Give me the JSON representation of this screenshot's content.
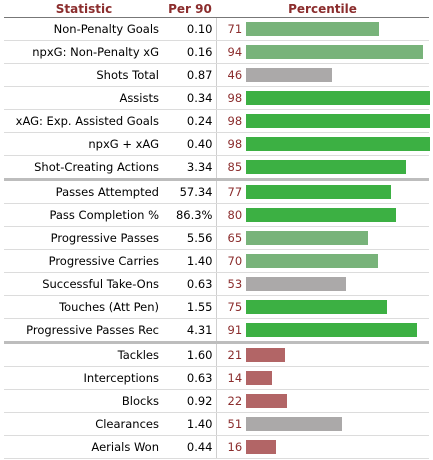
{
  "header": {
    "statistic": "Statistic",
    "per90": "Per 90",
    "percentile": "Percentile"
  },
  "colors": {
    "high": "#3cb043",
    "medium": "#78b37a",
    "neutral": "#aba9a9",
    "low": "#b26566",
    "number": "#8b2d2d"
  },
  "chart_data": {
    "type": "bar",
    "title": "",
    "xlabel": "",
    "ylabel": "",
    "xlim": [
      0,
      100
    ],
    "groups": [
      {
        "rows": [
          {
            "stat": "Non-Penalty Goals",
            "per90": "0.10",
            "percentile": 71,
            "color": "medium"
          },
          {
            "stat": "npxG: Non-Penalty xG",
            "per90": "0.16",
            "percentile": 94,
            "color": "medium"
          },
          {
            "stat": "Shots Total",
            "per90": "0.87",
            "percentile": 46,
            "color": "neutral"
          },
          {
            "stat": "Assists",
            "per90": "0.34",
            "percentile": 98,
            "color": "high"
          },
          {
            "stat": "xAG: Exp. Assisted Goals",
            "per90": "0.24",
            "percentile": 98,
            "color": "high"
          },
          {
            "stat": "npxG + xAG",
            "per90": "0.40",
            "percentile": 98,
            "color": "high"
          },
          {
            "stat": "Shot-Creating Actions",
            "per90": "3.34",
            "percentile": 85,
            "color": "high"
          }
        ]
      },
      {
        "rows": [
          {
            "stat": "Passes Attempted",
            "per90": "57.34",
            "percentile": 77,
            "color": "high"
          },
          {
            "stat": "Pass Completion %",
            "per90": "86.3%",
            "percentile": 80,
            "color": "high"
          },
          {
            "stat": "Progressive Passes",
            "per90": "5.56",
            "percentile": 65,
            "color": "medium"
          },
          {
            "stat": "Progressive Carries",
            "per90": "1.40",
            "percentile": 70,
            "color": "medium"
          },
          {
            "stat": "Successful Take-Ons",
            "per90": "0.63",
            "percentile": 53,
            "color": "neutral"
          },
          {
            "stat": "Touches (Att Pen)",
            "per90": "1.55",
            "percentile": 75,
            "color": "high"
          },
          {
            "stat": "Progressive Passes Rec",
            "per90": "4.31",
            "percentile": 91,
            "color": "high"
          }
        ]
      },
      {
        "rows": [
          {
            "stat": "Tackles",
            "per90": "1.60",
            "percentile": 21,
            "color": "low"
          },
          {
            "stat": "Interceptions",
            "per90": "0.63",
            "percentile": 14,
            "color": "low"
          },
          {
            "stat": "Blocks",
            "per90": "0.92",
            "percentile": 22,
            "color": "low"
          },
          {
            "stat": "Clearances",
            "per90": "1.40",
            "percentile": 51,
            "color": "neutral"
          },
          {
            "stat": "Aerials Won",
            "per90": "0.44",
            "percentile": 16,
            "color": "low"
          }
        ]
      }
    ]
  }
}
